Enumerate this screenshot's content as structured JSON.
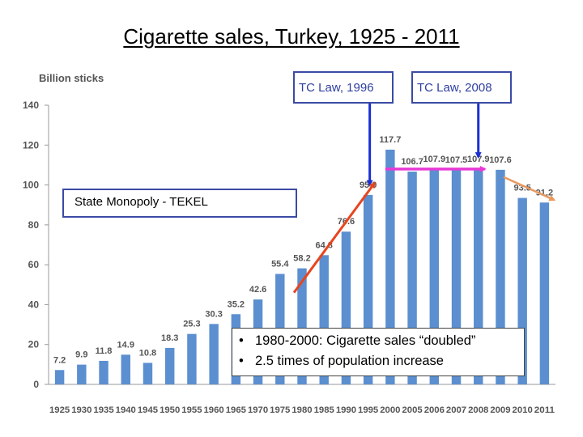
{
  "slide": {
    "title": "Cigarette sales, Turkey, 1925 - 2011"
  },
  "annotations": {
    "tc_law_1996": "TC Law, 1996",
    "tc_law_2008": "TC Law, 2008",
    "state_monopoly": "State Monopoly  - TEKEL",
    "bullets": [
      "1980-2000: Cigarette sales “doubled”",
      "2.5 times of population increase"
    ]
  },
  "colors": {
    "bar": "#5b8fd0",
    "arrow_blue": "#1a2fd0",
    "arrow_red": "#e8451e",
    "arrow_magenta": "#e83ad6",
    "arrow_orange": "#e89a60",
    "box_border": "#3b4aa5"
  },
  "chart_data": {
    "type": "bar",
    "ylabel": "Billion sticks",
    "ylim": [
      0,
      140
    ],
    "yticks": [
      0,
      20,
      40,
      60,
      80,
      100,
      120,
      140
    ],
    "grid": false,
    "categories": [
      "1925",
      "1930",
      "1935",
      "1940",
      "1945",
      "1950",
      "1955",
      "1960",
      "1965",
      "1970",
      "1975",
      "1980",
      "1985",
      "1990",
      "1995",
      "2000",
      "2005",
      "2006",
      "2007",
      "2008",
      "2009",
      "2010",
      "2011"
    ],
    "values": [
      7.2,
      9.9,
      11.8,
      14.9,
      10.8,
      18.3,
      25.3,
      30.3,
      35.2,
      42.6,
      55.4,
      58.2,
      64.8,
      76.6,
      95.0,
      117.7,
      106.7,
      107.9,
      107.5,
      107.9,
      107.6,
      93.5,
      91.2
    ],
    "value_labels": [
      "7.2",
      "9.9",
      "11.8",
      "14.9",
      "10.8",
      "18.3",
      "25.3",
      "30.3",
      "35.2",
      "42.6",
      "55.4",
      "58.2",
      "64.8",
      "76.6",
      "95.0",
      "117.7",
      "106.7",
      "107.9",
      "107.5",
      "107.9",
      "107.6",
      "93.5",
      "91,2"
    ]
  }
}
